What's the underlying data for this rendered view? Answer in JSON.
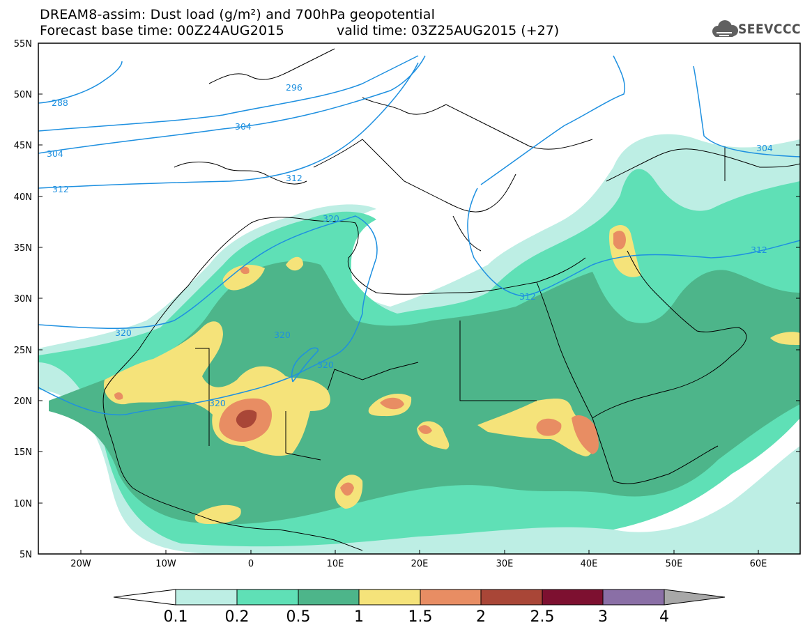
{
  "header": {
    "line1": "DREAM8-assim: Dust load (g/m²) and 700hPa geopotential",
    "line2": "Forecast base time: 00Z24AUG2015",
    "valid": "valid time: 03Z25AUG2015 (+27)"
  },
  "logo": {
    "text": "SEEVCCC",
    "icon": "cloud-icon"
  },
  "axes": {
    "lat_labels": [
      "55N",
      "50N",
      "45N",
      "40N",
      "35N",
      "30N",
      "25N",
      "20N",
      "15N",
      "10N",
      "5N"
    ],
    "lon_labels": [
      "20W",
      "10W",
      "0",
      "10E",
      "20E",
      "30E",
      "40E",
      "50E",
      "60E"
    ]
  },
  "contours": {
    "color": "#1e90e0",
    "labels": [
      {
        "text": "288"
      },
      {
        "text": "296"
      },
      {
        "text": "304"
      },
      {
        "text": "304"
      },
      {
        "text": "304"
      },
      {
        "text": "312"
      },
      {
        "text": "312"
      },
      {
        "text": "312"
      },
      {
        "text": "312"
      },
      {
        "text": "320"
      },
      {
        "text": "320"
      },
      {
        "text": "320"
      },
      {
        "text": "320"
      },
      {
        "text": "320"
      }
    ]
  },
  "colorbar": {
    "ticks": [
      "0.1",
      "0.2",
      "0.5",
      "1",
      "1.5",
      "2",
      "2.5",
      "3",
      "4"
    ],
    "colors": [
      "#bdeee4",
      "#5fe0b6",
      "#4db58a",
      "#f5e37a",
      "#e88d63",
      "#a94637",
      "#7d1030",
      "#8a6fa6"
    ],
    "below_color": "#ffffff",
    "above_color": "#a8a8a8"
  }
}
